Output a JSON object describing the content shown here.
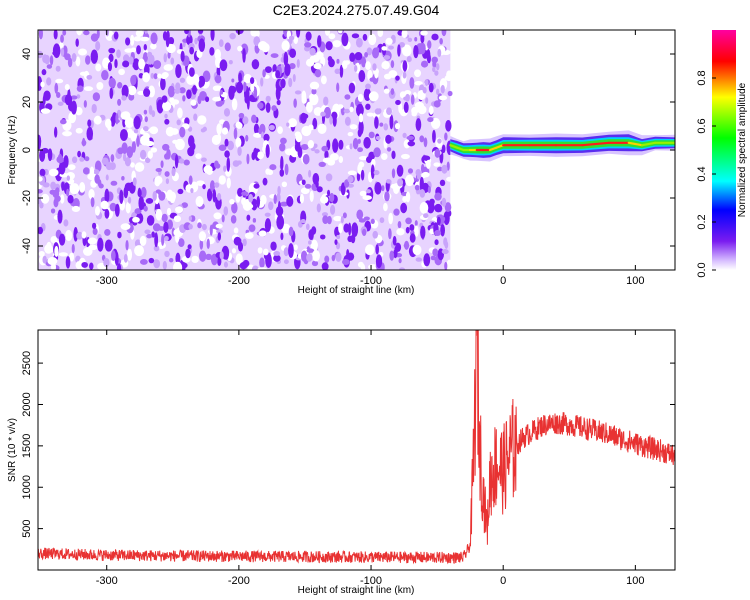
{
  "title": "C2E3.2024.275.07.49.G04",
  "chart_data": [
    {
      "type": "heatmap",
      "title": "C2E3.2024.275.07.49.G04",
      "xlabel": "Height of straight line (km)",
      "ylabel": "Frequency (Hz)",
      "xlim": [
        -352,
        130
      ],
      "ylim": [
        -50,
        50
      ],
      "xticks": [
        -300,
        -200,
        -100,
        0,
        100
      ],
      "yticks": [
        -40,
        -20,
        0,
        20,
        40
      ],
      "colorbar": {
        "label": "Normalized spectral amplitude",
        "range": [
          0,
          1
        ],
        "ticks": [
          0.0,
          0.2,
          0.4,
          0.6,
          0.8
        ]
      },
      "noise_region_x": [
        -352,
        -40
      ],
      "signal_track": [
        {
          "x": -40,
          "freq": 2,
          "amp": 0.55
        },
        {
          "x": -35,
          "freq": 1,
          "amp": 0.6
        },
        {
          "x": -30,
          "freq": 0,
          "amp": 0.65
        },
        {
          "x": -25,
          "freq": 0,
          "amp": 0.7
        },
        {
          "x": -20,
          "freq": 0,
          "amp": 0.85
        },
        {
          "x": -15,
          "freq": 0,
          "amp": 0.9
        },
        {
          "x": -10,
          "freq": 0,
          "amp": 0.8
        },
        {
          "x": -5,
          "freq": 1,
          "amp": 0.75
        },
        {
          "x": 0,
          "freq": 2,
          "amp": 0.85
        },
        {
          "x": 20,
          "freq": 2,
          "amp": 0.9
        },
        {
          "x": 40,
          "freq": 2,
          "amp": 0.9
        },
        {
          "x": 60,
          "freq": 2,
          "amp": 0.85
        },
        {
          "x": 80,
          "freq": 3,
          "amp": 0.95
        },
        {
          "x": 95,
          "freq": 3,
          "amp": 0.95
        },
        {
          "x": 105,
          "freq": 2,
          "amp": 0.6
        },
        {
          "x": 115,
          "freq": 3,
          "amp": 0.5
        },
        {
          "x": 130,
          "freq": 3,
          "amp": 0.45
        }
      ]
    },
    {
      "type": "line",
      "xlabel": "Height of straight line (km)",
      "ylabel": "SNR (10 * v/v)",
      "xlim": [
        -352,
        130
      ],
      "ylim": [
        0,
        2900
      ],
      "xticks": [
        -300,
        -200,
        -100,
        0,
        100
      ],
      "yticks": [
        500,
        1000,
        1500,
        2000,
        2500
      ],
      "series": [
        {
          "color": "#e83232",
          "x": [
            -352,
            -300,
            -250,
            -200,
            -150,
            -100,
            -50,
            -30,
            -25,
            -22,
            -20,
            -18,
            -15,
            -12,
            -10,
            -5,
            0,
            5,
            10,
            15,
            20,
            25,
            30,
            40,
            50,
            60,
            70,
            80,
            90,
            100,
            110,
            120,
            130
          ],
          "y": [
            200,
            180,
            170,
            165,
            160,
            155,
            150,
            150,
            300,
            1500,
            2900,
            1600,
            900,
            500,
            1100,
            1300,
            1200,
            1400,
            1500,
            1600,
            1650,
            1700,
            1750,
            1780,
            1760,
            1720,
            1680,
            1640,
            1580,
            1530,
            1480,
            1440,
            1380
          ]
        }
      ]
    }
  ],
  "colors": {
    "line": "#e83232",
    "noise_light": "#e8d4ff",
    "noise_dark": "#7a1cf0"
  }
}
